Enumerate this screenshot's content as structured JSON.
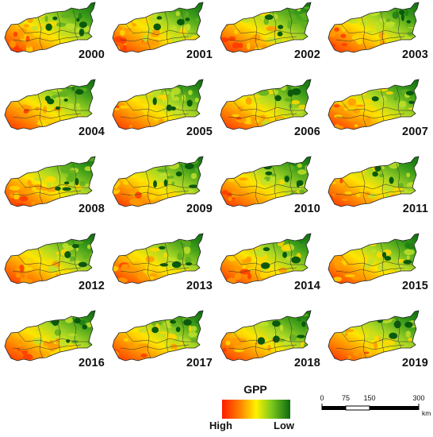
{
  "legend": {
    "title": "GPP",
    "high_label": "High",
    "low_label": "Low",
    "colors": [
      "#ff1a00",
      "#ff8a00",
      "#fff200",
      "#7fca1c",
      "#0a6a10"
    ]
  },
  "scale_bar": {
    "ticks": [
      "0",
      "75",
      "150",
      "300"
    ],
    "unit": "km"
  },
  "panels": [
    {
      "year": "2000",
      "dark_patches": 5
    },
    {
      "year": "2001",
      "dark_patches": 4
    },
    {
      "year": "2002",
      "dark_patches": 3
    },
    {
      "year": "2003",
      "dark_patches": 4
    },
    {
      "year": "2004",
      "dark_patches": 5
    },
    {
      "year": "2005",
      "dark_patches": 4
    },
    {
      "year": "2006",
      "dark_patches": 3
    },
    {
      "year": "2007",
      "dark_patches": 3
    },
    {
      "year": "2008",
      "dark_patches": 4
    },
    {
      "year": "2009",
      "dark_patches": 5
    },
    {
      "year": "2010",
      "dark_patches": 5
    },
    {
      "year": "2011",
      "dark_patches": 3
    },
    {
      "year": "2012",
      "dark_patches": 3
    },
    {
      "year": "2013",
      "dark_patches": 4
    },
    {
      "year": "2014",
      "dark_patches": 4
    },
    {
      "year": "2015",
      "dark_patches": 3
    },
    {
      "year": "2016",
      "dark_patches": 5
    },
    {
      "year": "2017",
      "dark_patches": 4
    },
    {
      "year": "2018",
      "dark_patches": 5
    },
    {
      "year": "2019",
      "dark_patches": 4
    }
  ]
}
